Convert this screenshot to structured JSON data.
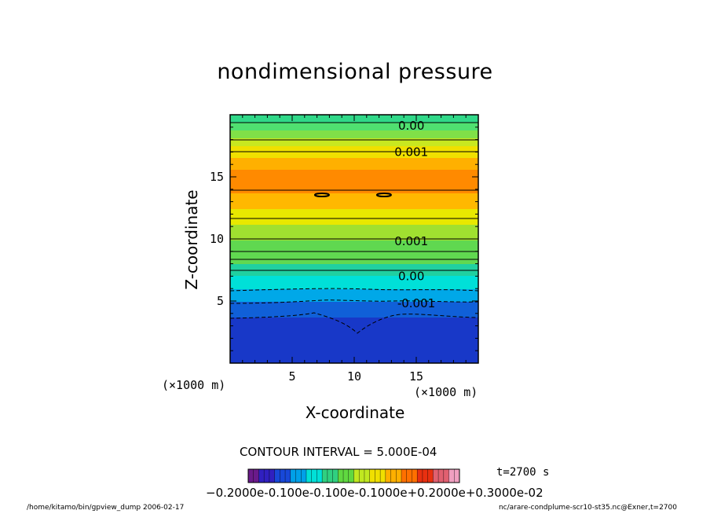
{
  "chart_data": {
    "type": "heatmap",
    "title": "nondimensional pressure",
    "xlabel": "X-coordinate",
    "ylabel": "Z-coordinate",
    "x_unit": "(×1000 m)",
    "y_unit": "(×1000 m)",
    "xlim": [
      0,
      20
    ],
    "ylim": [
      0,
      20
    ],
    "x_ticks": [
      5,
      10,
      15
    ],
    "y_ticks": [
      5,
      10,
      15
    ],
    "contour_interval_text": "CONTOUR INTERVAL = 5.000E-04",
    "contour_labels": [
      {
        "text": "0.00",
        "x": 14.6,
        "z": 19.1
      },
      {
        "text": "0.001",
        "x": 14.6,
        "z": 17.0
      },
      {
        "text": "0.001",
        "x": 14.6,
        "z": 9.8
      },
      {
        "text": "0.00",
        "x": 14.6,
        "z": 7.0
      },
      {
        "text": "-0.001",
        "x": 15.0,
        "z": 4.8
      }
    ],
    "colorbar_range": [
      -0.002,
      0.003
    ],
    "colorbar_text": "−0.2000e-02, −0.1000e-02, 0.0000e+00, 0.1000e-02, 0.2000e-02, 0.3000e-02",
    "colorbar_text_display": "−0.2000e-0.100e-0.100e-0.1000e+0.2000e+0.3000e-02",
    "time_label": "t=2700 s",
    "colors": {
      "deep_blue": "#1530c8",
      "cyan": "#00e0d8",
      "green": "#30d050",
      "yellow": "#f0e800",
      "orange": "#ff8000"
    }
  },
  "footer": {
    "left": "/home/kitamo/bin/gpview_dump   2006-02-17",
    "right": "nc/arare-condplume-scr10-st35.nc@Exner,t=2700"
  }
}
